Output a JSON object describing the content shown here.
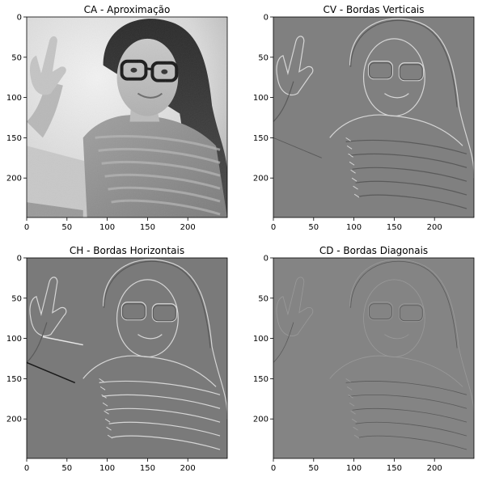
{
  "figure": {
    "background": "#ffffff",
    "panels": [
      {
        "id": "ca",
        "title": "CA - Aproximação",
        "image_kind": "grayscale-photo",
        "description": "grayscale approximation coefficients of a woman with glasses waving",
        "xlim": [
          0,
          249
        ],
        "ylim": [
          249,
          0
        ],
        "xticks": [
          0,
          50,
          100,
          150,
          200
        ],
        "yticks": [
          0,
          50,
          100,
          150,
          200
        ]
      },
      {
        "id": "cv",
        "title": "CV - Bordas Verticais",
        "image_kind": "edge-map",
        "edge_color": "#808080",
        "xlim": [
          0,
          249
        ],
        "ylim": [
          249,
          0
        ],
        "xticks": [
          0,
          50,
          100,
          150,
          200
        ],
        "yticks": [
          0,
          50,
          100,
          150,
          200
        ]
      },
      {
        "id": "ch",
        "title": "CH - Bordas Horizontais",
        "image_kind": "edge-map",
        "edge_color": "#7a7a7a",
        "xlim": [
          0,
          249
        ],
        "ylim": [
          249,
          0
        ],
        "xticks": [
          0,
          50,
          100,
          150,
          200
        ],
        "yticks": [
          0,
          50,
          100,
          150,
          200
        ]
      },
      {
        "id": "cd",
        "title": "CD - Bordas Diagonais",
        "image_kind": "edge-map",
        "edge_color": "#848484",
        "xlim": [
          0,
          249
        ],
        "ylim": [
          249,
          0
        ],
        "xticks": [
          0,
          50,
          100,
          150,
          200
        ],
        "yticks": [
          0,
          50,
          100,
          150,
          200
        ]
      }
    ]
  }
}
